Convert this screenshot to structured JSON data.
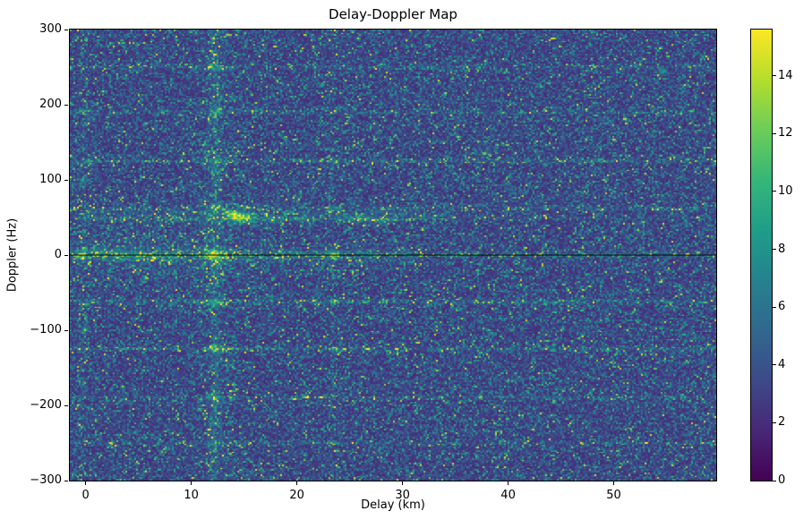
{
  "figure": {
    "background": "#ffffff"
  },
  "chart_data": {
    "type": "heatmap",
    "title": "Delay-Doppler Map",
    "xlabel": "Delay (km)",
    "ylabel": "Doppler (Hz)",
    "xlim": [
      -1.5,
      59.7
    ],
    "ylim": [
      -300,
      300
    ],
    "xticks": [
      0,
      10,
      20,
      30,
      40,
      50
    ],
    "yticks": [
      -300,
      -200,
      -100,
      0,
      100,
      200,
      300
    ],
    "grid": false,
    "legend": "none",
    "colormap": "viridis",
    "colormap_stops": [
      "#440154",
      "#482878",
      "#3e4a89",
      "#31688e",
      "#26828e",
      "#1f9e89",
      "#35b779",
      "#6dcd59",
      "#b4de2c",
      "#fde725"
    ],
    "clim": [
      0,
      15.6
    ],
    "colorbar_ticks": [
      0,
      2,
      4,
      6,
      8,
      10,
      12,
      14
    ],
    "noise": {
      "mean": 4.1,
      "speckle_min": 0.45,
      "speckle_scale": 0.55,
      "speckle_max": 3.5,
      "seed": 12345
    },
    "zero_doppler_line": {
      "doppler": 0,
      "color": "#000000"
    },
    "h_streaks": [
      {
        "d": 250,
        "amp": 1.3,
        "sigma": 2.2
      },
      {
        "d": 190,
        "amp": 1.2,
        "sigma": 2.0
      },
      {
        "d": 125,
        "amp": 1.6,
        "sigma": 2.0
      },
      {
        "d": 62,
        "amp": 1.5,
        "sigma": 2.0
      },
      {
        "d": 55,
        "amp": 2.0,
        "sigma": 2.0,
        "x1": 33
      },
      {
        "d": 48,
        "amp": 2.6,
        "sigma": 2.4,
        "x1": 33
      },
      {
        "d": 50,
        "amp": 0.9,
        "sigma": 2.5,
        "x0": 33
      },
      {
        "d": 0,
        "amp": 2.4,
        "sigma": 1.8
      },
      {
        "d": 0,
        "amp": 1.6,
        "sigma": 7.0,
        "x1": 30
      },
      {
        "d": 0,
        "amp": 0.9,
        "sigma": 25,
        "x1": 15
      },
      {
        "d": -62,
        "amp": 1.9,
        "sigma": 2.2
      },
      {
        "d": -125,
        "amp": 1.7,
        "sigma": 2.0
      },
      {
        "d": -190,
        "amp": 1.2,
        "sigma": 2.0
      },
      {
        "d": -250,
        "amp": 1.0,
        "sigma": 2.0
      }
    ],
    "v_streaks": [
      {
        "x": 12.3,
        "amp": 1.3,
        "sigma": 0.35
      },
      {
        "x": 12.3,
        "amp": 0.5,
        "sigma": 1.2
      },
      {
        "x": 23.5,
        "amp": 0.4,
        "sigma": 0.3
      },
      {
        "x": -0.3,
        "amp": 0.6,
        "sigma": 0.4
      }
    ],
    "hotspots": [
      {
        "x": 12.3,
        "y": 0,
        "amp": 8.0,
        "sx": 0.5,
        "sy": 5
      },
      {
        "x": 14.6,
        "y": 50,
        "amp": 10.0,
        "sx": 0.7,
        "sy": 4
      },
      {
        "x": 13.8,
        "y": 56,
        "amp": 5.0,
        "sx": 0.5,
        "sy": 3
      },
      {
        "x": 23.5,
        "y": 0,
        "amp": 6.0,
        "sx": 0.4,
        "sy": 4
      },
      {
        "x": -0.3,
        "y": 0,
        "amp": 5.0,
        "sx": 0.4,
        "sy": 4
      },
      {
        "x": 0.0,
        "y": 100,
        "amp": 2.5,
        "sx": 0.4,
        "sy": 3
      },
      {
        "x": 0.3,
        "y": 125,
        "amp": 2.5,
        "sx": 0.4,
        "sy": 3
      },
      {
        "x": -0.2,
        "y": -100,
        "amp": 2.2,
        "sx": 0.4,
        "sy": 3
      },
      {
        "x": 0.2,
        "y": 192,
        "amp": 1.8,
        "sx": 0.4,
        "sy": 3
      },
      {
        "x": 12.3,
        "y": 62,
        "amp": 3.5,
        "sx": 0.5,
        "sy": 4
      },
      {
        "x": 12.3,
        "y": -62,
        "amp": 3.5,
        "sx": 0.5,
        "sy": 4
      },
      {
        "x": 12.3,
        "y": 125,
        "amp": 3.0,
        "sx": 0.5,
        "sy": 4
      },
      {
        "x": 12.3,
        "y": -125,
        "amp": 3.5,
        "sx": 0.5,
        "sy": 4
      },
      {
        "x": 12.3,
        "y": 190,
        "amp": 2.5,
        "sx": 0.5,
        "sy": 4
      },
      {
        "x": 12.3,
        "y": -190,
        "amp": 2.5,
        "sx": 0.5,
        "sy": 4
      },
      {
        "x": 12.3,
        "y": 250,
        "amp": 2.5,
        "sx": 0.5,
        "sy": 4
      },
      {
        "x": 12.3,
        "y": -250,
        "amp": 2.0,
        "sx": 0.5,
        "sy": 4
      },
      {
        "x": 23.5,
        "y": 62,
        "amp": 2.0,
        "sx": 0.4,
        "sy": 3
      },
      {
        "x": 23.5,
        "y": -62,
        "amp": 2.5,
        "sx": 0.4,
        "sy": 3
      },
      {
        "x": 23.5,
        "y": 125,
        "amp": 2.0,
        "sx": 0.4,
        "sy": 3
      },
      {
        "x": 23.5,
        "y": -125,
        "amp": 2.5,
        "sx": 0.4,
        "sy": 3
      },
      {
        "x": 17.5,
        "y": 48,
        "amp": 3.0,
        "sx": 0.6,
        "sy": 3
      },
      {
        "x": 20.5,
        "y": 48,
        "amp": 2.5,
        "sx": 0.6,
        "sy": 3
      },
      {
        "x": 26.0,
        "y": 48,
        "amp": 3.0,
        "sx": 0.8,
        "sy": 3
      },
      {
        "x": 28.5,
        "y": 47,
        "amp": 2.5,
        "sx": 0.6,
        "sy": 3
      },
      {
        "x": 6.0,
        "y": 0,
        "amp": 2.0,
        "sx": 1.5,
        "sy": 4
      },
      {
        "x": 3.0,
        "y": 2,
        "amp": 1.5,
        "sx": 1.5,
        "sy": 5
      },
      {
        "x": 35.5,
        "y": 0,
        "amp": 2.0,
        "sx": 0.5,
        "sy": 3
      },
      {
        "x": 40.0,
        "y": 0,
        "amp": 1.5,
        "sx": 0.5,
        "sy": 3
      },
      {
        "x": 47.0,
        "y": 0,
        "amp": 1.5,
        "sx": 0.4,
        "sy": 3
      }
    ]
  }
}
